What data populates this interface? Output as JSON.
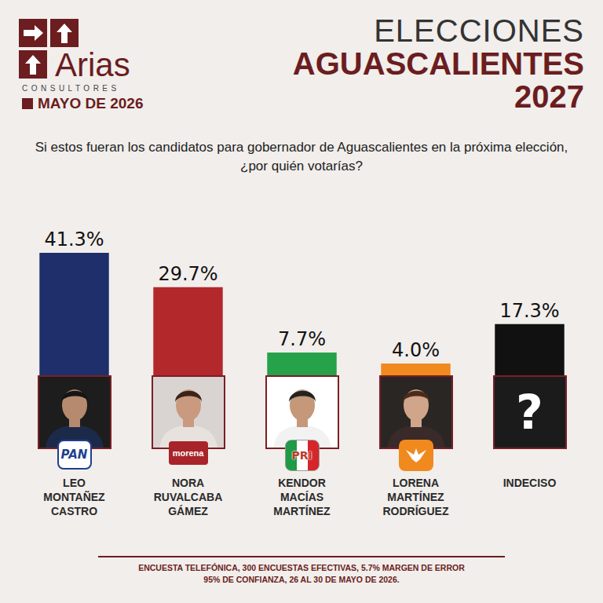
{
  "header": {
    "brand": "Arias",
    "brand_subtitle": "CONSULTORES",
    "date": "MAYO DE 2026",
    "heading": [
      "ELECCIONES",
      "AGUASCALIENTES",
      "2027"
    ]
  },
  "chart_data": {
    "type": "bar",
    "title": "Si estos fueran los candidatos para gobernador de Aguascalientes en la próxima elección, ¿por quién votarías?",
    "categories": [
      "LEO MONTAÑEZ CASTRO",
      "NORA RUVALCABA GÁMEZ",
      "KENDOR MACÍAS MARTÍNEZ",
      "LORENA MARTÍNEZ RODRÍGUEZ",
      "INDECISO"
    ],
    "values": [
      41.3,
      29.7,
      7.7,
      4.0,
      17.3
    ],
    "value_labels": [
      "41.3%",
      "29.7%",
      "7.7%",
      "4.0%",
      "17.3%"
    ],
    "colors": [
      "#1f2f6b",
      "#b3282b",
      "#25a24a",
      "#f08a1e",
      "#111111"
    ],
    "party_labels": [
      "PAN",
      "morena",
      "PRI",
      null,
      null
    ],
    "photo_labels": [
      null,
      null,
      null,
      null,
      "?"
    ],
    "ylim": [
      0,
      41.3
    ],
    "data_labels": true,
    "tick_labels": "x",
    "grid": false
  },
  "footer": [
    "ENCUESTA TELEFÓNICA, 300 ENCUESTAS EFECTIVAS, 5.7%  MARGEN DE ERROR",
    "95% DE CONFIANZA, 26 AL 30 DE MAYO DE 2026."
  ]
}
